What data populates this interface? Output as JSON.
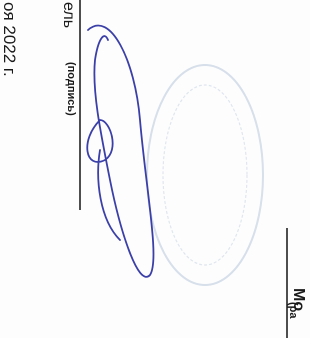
{
  "fragments": {
    "signer_title": "ель",
    "date": "оя 2022 г.",
    "signature_caption": "(подпись)",
    "name": "Мо",
    "name_caption": "(ра"
  }
}
